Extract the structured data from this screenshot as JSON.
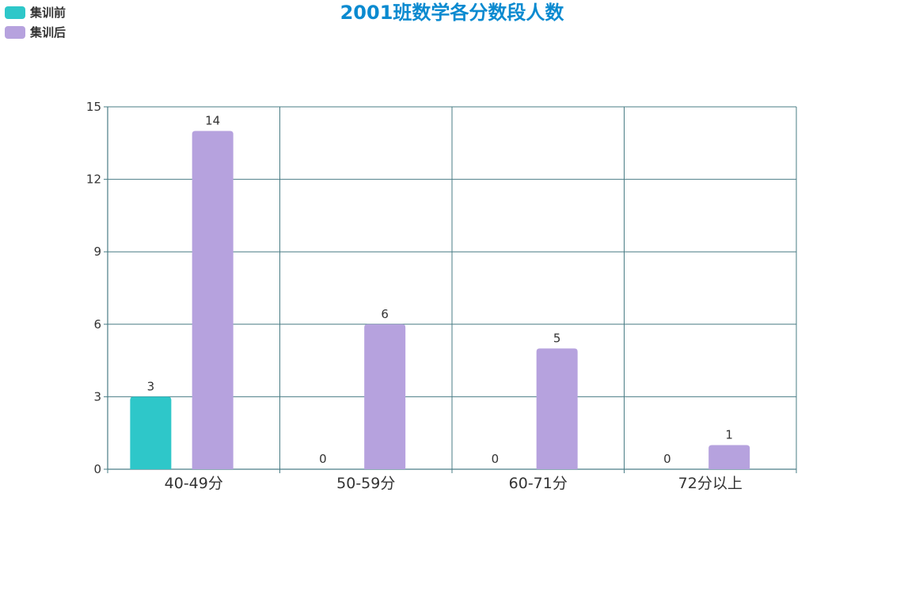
{
  "chart_data": {
    "type": "bar",
    "title": "2001班数学各分数段人数",
    "categories": [
      "40-49分",
      "50-59分",
      "60-71分",
      "72分以上"
    ],
    "series": [
      {
        "name": "集训前",
        "values": [
          3,
          0,
          0,
          0
        ],
        "color": "#2ec7c9"
      },
      {
        "name": "集训后",
        "values": [
          14,
          6,
          5,
          1
        ],
        "color": "#b6a2de"
      }
    ],
    "yticks": [
      0,
      3,
      6,
      9,
      12,
      15
    ],
    "ylim": [
      0,
      15
    ],
    "xlabel": "",
    "ylabel": "",
    "grid": true,
    "legend_position": "top-left",
    "axis_color": "#4a7d86"
  }
}
